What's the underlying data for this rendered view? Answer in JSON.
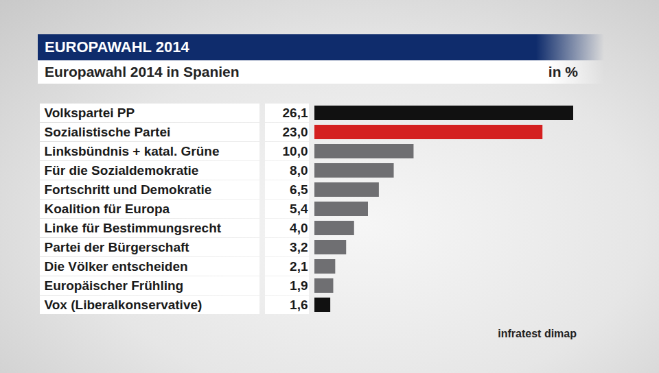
{
  "chart_data": {
    "type": "bar",
    "orientation": "horizontal",
    "title": "EUROPAWAHL 2014",
    "subtitle": "Europawahl 2014 in Spanien",
    "xlabel": "in %",
    "source": "infratest dimap",
    "categories": [
      "Volkspartei PP",
      "Sozialistische Partei",
      "Linksbündnis + katal. Grüne",
      "Für die Sozialdemokratie",
      "Fortschritt und Demokratie",
      "Koalition für Europa",
      "Linke für Bestimmungsrecht",
      "Partei der Bürgerschaft",
      "Die Völker entscheiden",
      "Europäischer Frühling",
      "Vox (Liberalkonservative)"
    ],
    "values": [
      26.1,
      23.0,
      10.0,
      8.0,
      6.5,
      5.4,
      4.0,
      3.2,
      2.1,
      1.9,
      1.6
    ],
    "value_labels": [
      "26,1",
      "23,0",
      "10,0",
      "8,0",
      "6,5",
      "5,4",
      "4,0",
      "3,2",
      "2,1",
      "1,9",
      "1,6"
    ],
    "colors": [
      "#111111",
      "#d42020",
      "#6f6f72",
      "#6f6f72",
      "#6f6f72",
      "#6f6f72",
      "#6f6f72",
      "#6f6f72",
      "#6f6f72",
      "#6f6f72",
      "#111111"
    ],
    "xlim": [
      0,
      26.1
    ],
    "data_labels": true,
    "tick_labels": "y"
  }
}
